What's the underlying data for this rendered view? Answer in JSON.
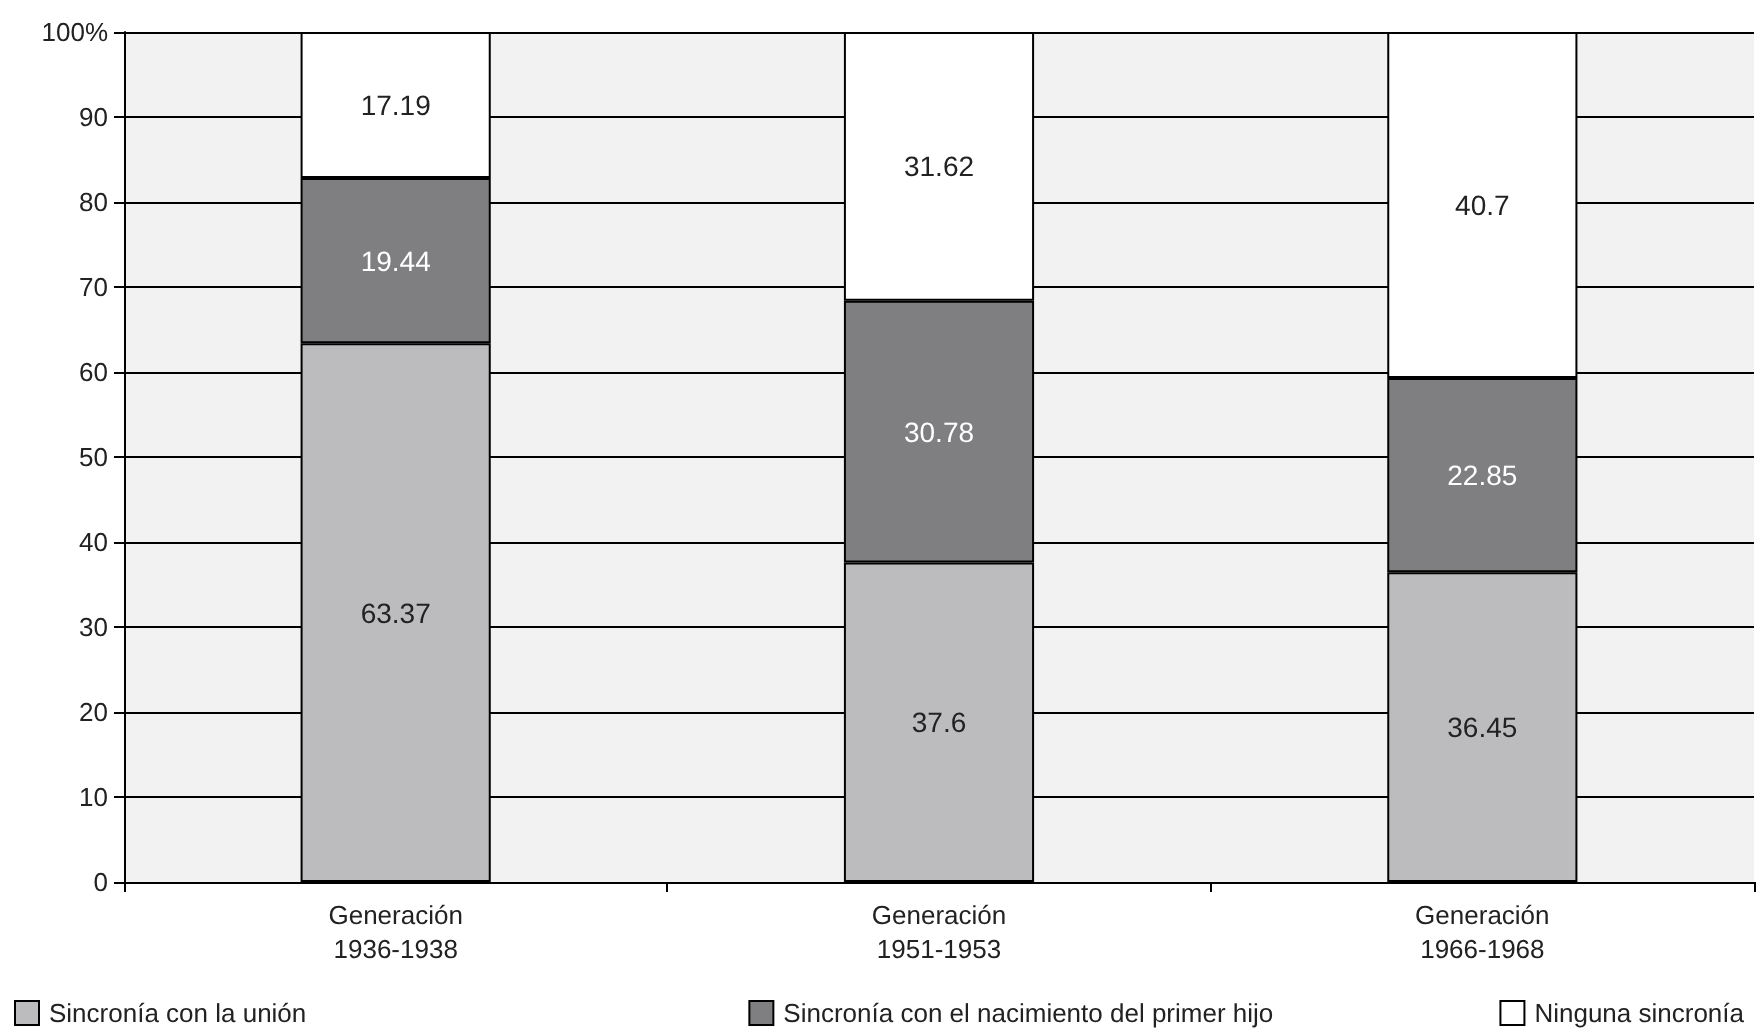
{
  "chart_data": {
    "type": "bar",
    "stacked": true,
    "categories": [
      "Generación\n1936-1938",
      "Generación\n1951-1953",
      "Generación\n1966-1968"
    ],
    "series": [
      {
        "name": "Sincronía con la unión",
        "color": "#bcbcbe",
        "values": [
          63.37,
          37.6,
          36.45
        ]
      },
      {
        "name": "Sincronía con el nacimiento del primer hijo",
        "color": "#7f7f81",
        "values": [
          19.44,
          30.78,
          22.85
        ]
      },
      {
        "name": "Ninguna sincronía",
        "color": "#ffffff",
        "values": [
          17.19,
          31.62,
          40.7
        ]
      }
    ],
    "ylim": [
      0,
      100
    ],
    "yticks": [
      0,
      10,
      20,
      30,
      40,
      50,
      60,
      70,
      80,
      90,
      {
        "value": 100,
        "label": "100%"
      }
    ],
    "grid": "y",
    "legend": "bottom",
    "data_labels": true
  }
}
